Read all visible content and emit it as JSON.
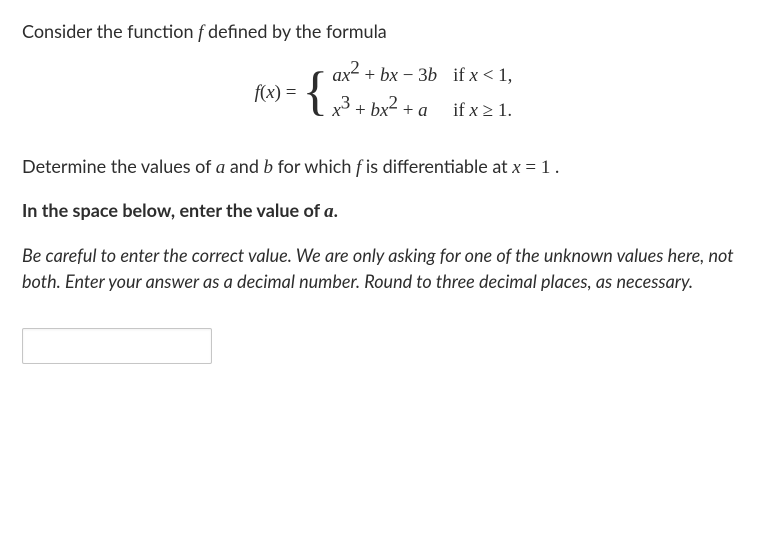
{
  "intro": {
    "prefix": "Consider the function ",
    "fn_symbol": "f",
    "suffix": "  defined by the formula"
  },
  "formula": {
    "lhs_f": "f",
    "lhs_open": "(",
    "lhs_x": "x",
    "lhs_close": ") = ",
    "case1_expr": {
      "a": "a",
      "x1": "x",
      "sq": "2",
      "plus": " + ",
      "b": "b",
      "x2": "x",
      "minus": " − 3",
      "b2": "b"
    },
    "case1_cond": {
      "if": "if ",
      "x": "x",
      "rel": " < 1,"
    },
    "case2_expr": {
      "x1": "x",
      "cube": "3",
      "plus": " + ",
      "b": "b",
      "x2": "x",
      "sq": "2",
      "plus2": " + ",
      "a": "a"
    },
    "case2_cond": {
      "if": "if ",
      "x": "x",
      "rel": " ≥ 1."
    }
  },
  "determine": {
    "prefix": "Determine the values of ",
    "a": "a",
    "mid1": "  and ",
    "b": "b",
    "mid2": "  for which ",
    "f": "f",
    "mid3": " is differentiable at ",
    "x": "x",
    "eq": " = 1",
    "period": " ."
  },
  "bold_line": {
    "prefix": "In the space below, enter the value of ",
    "a": "a",
    "suffix": "."
  },
  "caution": "Be careful to enter the correct value. We are only asking for one of the unknown values here, not both. Enter your answer as a decimal number. Round to three decimal places, as necessary.",
  "input": {
    "value": "",
    "placeholder": ""
  }
}
